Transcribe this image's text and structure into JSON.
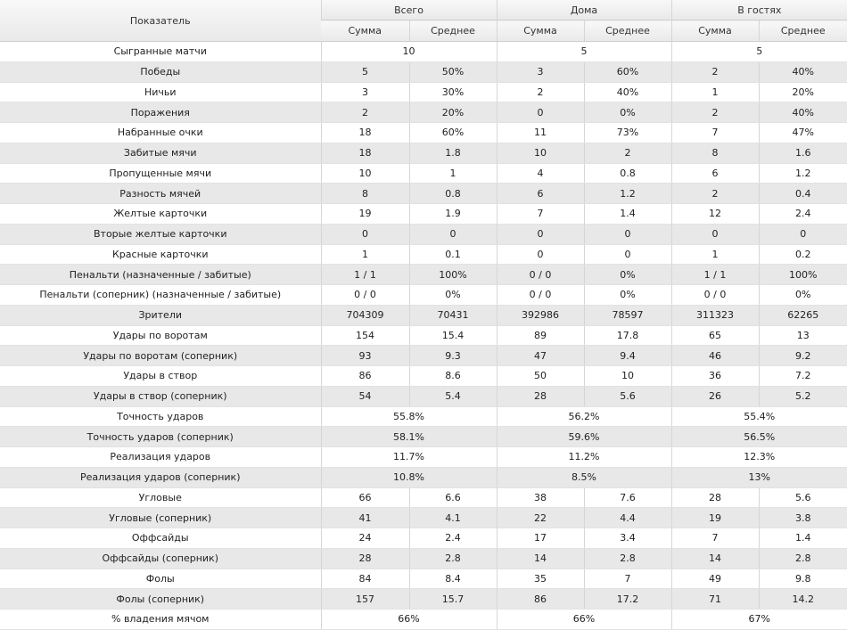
{
  "header": {
    "metric_label": "Показатель",
    "groups": [
      "Всего",
      "Дома",
      "В гостях"
    ],
    "sum_label": "Сумма",
    "avg_label": "Среднее"
  },
  "rows": [
    {
      "label": "Сыгранные матчи",
      "merged": true,
      "values": [
        "10",
        "5",
        "5"
      ]
    },
    {
      "label": "Победы",
      "merged": false,
      "values": [
        "5",
        "50%",
        "3",
        "60%",
        "2",
        "40%"
      ]
    },
    {
      "label": "Ничьи",
      "merged": false,
      "values": [
        "3",
        "30%",
        "2",
        "40%",
        "1",
        "20%"
      ]
    },
    {
      "label": "Поражения",
      "merged": false,
      "values": [
        "2",
        "20%",
        "0",
        "0%",
        "2",
        "40%"
      ]
    },
    {
      "label": "Набранные очки",
      "merged": false,
      "values": [
        "18",
        "60%",
        "11",
        "73%",
        "7",
        "47%"
      ]
    },
    {
      "label": "Забитые мячи",
      "merged": false,
      "values": [
        "18",
        "1.8",
        "10",
        "2",
        "8",
        "1.6"
      ]
    },
    {
      "label": "Пропущенные мячи",
      "merged": false,
      "values": [
        "10",
        "1",
        "4",
        "0.8",
        "6",
        "1.2"
      ]
    },
    {
      "label": "Разность мячей",
      "merged": false,
      "values": [
        "8",
        "0.8",
        "6",
        "1.2",
        "2",
        "0.4"
      ]
    },
    {
      "label": "Желтые карточки",
      "merged": false,
      "values": [
        "19",
        "1.9",
        "7",
        "1.4",
        "12",
        "2.4"
      ]
    },
    {
      "label": "Вторые желтые карточки",
      "merged": false,
      "values": [
        "0",
        "0",
        "0",
        "0",
        "0",
        "0"
      ]
    },
    {
      "label": "Красные карточки",
      "merged": false,
      "values": [
        "1",
        "0.1",
        "0",
        "0",
        "1",
        "0.2"
      ]
    },
    {
      "label": "Пенальти (назначенные / забитые)",
      "merged": false,
      "values": [
        "1 / 1",
        "100%",
        "0 / 0",
        "0%",
        "1 / 1",
        "100%"
      ]
    },
    {
      "label": "Пенальти (соперник) (назначенные / забитые)",
      "merged": false,
      "values": [
        "0 / 0",
        "0%",
        "0 / 0",
        "0%",
        "0 / 0",
        "0%"
      ]
    },
    {
      "label": "Зрители",
      "merged": false,
      "values": [
        "704309",
        "70431",
        "392986",
        "78597",
        "311323",
        "62265"
      ]
    },
    {
      "label": "Удары по воротам",
      "merged": false,
      "values": [
        "154",
        "15.4",
        "89",
        "17.8",
        "65",
        "13"
      ]
    },
    {
      "label": "Удары по воротам (соперник)",
      "merged": false,
      "values": [
        "93",
        "9.3",
        "47",
        "9.4",
        "46",
        "9.2"
      ]
    },
    {
      "label": "Удары в створ",
      "merged": false,
      "values": [
        "86",
        "8.6",
        "50",
        "10",
        "36",
        "7.2"
      ]
    },
    {
      "label": "Удары в створ (соперник)",
      "merged": false,
      "values": [
        "54",
        "5.4",
        "28",
        "5.6",
        "26",
        "5.2"
      ]
    },
    {
      "label": "Точность ударов",
      "merged": true,
      "values": [
        "55.8%",
        "56.2%",
        "55.4%"
      ]
    },
    {
      "label": "Точность ударов (соперник)",
      "merged": true,
      "values": [
        "58.1%",
        "59.6%",
        "56.5%"
      ]
    },
    {
      "label": "Реализация ударов",
      "merged": true,
      "values": [
        "11.7%",
        "11.2%",
        "12.3%"
      ]
    },
    {
      "label": "Реализация ударов (соперник)",
      "merged": true,
      "values": [
        "10.8%",
        "8.5%",
        "13%"
      ]
    },
    {
      "label": "Угловые",
      "merged": false,
      "values": [
        "66",
        "6.6",
        "38",
        "7.6",
        "28",
        "5.6"
      ]
    },
    {
      "label": "Угловые (соперник)",
      "merged": false,
      "values": [
        "41",
        "4.1",
        "22",
        "4.4",
        "19",
        "3.8"
      ]
    },
    {
      "label": "Оффсайды",
      "merged": false,
      "values": [
        "24",
        "2.4",
        "17",
        "3.4",
        "7",
        "1.4"
      ]
    },
    {
      "label": "Оффсайды (соперник)",
      "merged": false,
      "values": [
        "28",
        "2.8",
        "14",
        "2.8",
        "14",
        "2.8"
      ]
    },
    {
      "label": "Фолы",
      "merged": false,
      "values": [
        "84",
        "8.4",
        "35",
        "7",
        "49",
        "9.8"
      ]
    },
    {
      "label": "Фолы (соперник)",
      "merged": false,
      "values": [
        "157",
        "15.7",
        "86",
        "17.2",
        "71",
        "14.2"
      ]
    },
    {
      "label": "% владения мячом",
      "merged": true,
      "values": [
        "66%",
        "66%",
        "67%"
      ]
    }
  ]
}
